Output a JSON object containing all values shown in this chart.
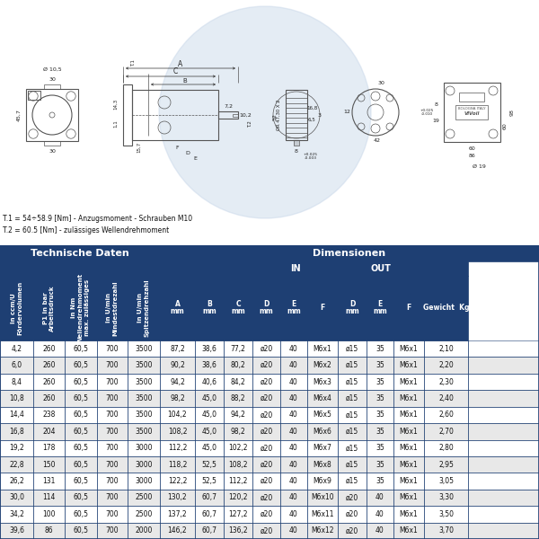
{
  "title_note1": "T.1 = 54÷58.9 [Nm] - Anzugsmoment - Schrauben M10",
  "title_note2": "T.2 = 60.5 [Nm] - zulässiges Wellendrehmoment",
  "header_tech": "Technische Daten",
  "header_dim": "Dimensionen",
  "header_in": "IN",
  "header_out": "OUT",
  "col_headers_rotated": [
    "Fördervolumen\nin ccm/U",
    "Arbeitsdruck\nP1 in bar",
    "max. zulässiges\nWellendrehmoment\nin Nm",
    "Mindestdrezahl\nin U/min",
    "Spitzendrehzahl\nin U/min"
  ],
  "rows": [
    [
      "4,2",
      "260",
      "60,5",
      "700",
      "3500",
      "87,2",
      "38,6",
      "77,2",
      "ø20",
      "40",
      "M6x1",
      "ø15",
      "35",
      "M6x1",
      "2,10"
    ],
    [
      "6,0",
      "260",
      "60,5",
      "700",
      "3500",
      "90,2",
      "38,6",
      "80,2",
      "ø20",
      "40",
      "M6x2",
      "ø15",
      "35",
      "M6x1",
      "2,20"
    ],
    [
      "8,4",
      "260",
      "60,5",
      "700",
      "3500",
      "94,2",
      "40,6",
      "84,2",
      "ø20",
      "40",
      "M6x3",
      "ø15",
      "35",
      "M6x1",
      "2,30"
    ],
    [
      "10,8",
      "260",
      "60,5",
      "700",
      "3500",
      "98,2",
      "45,0",
      "88,2",
      "ø20",
      "40",
      "M6x4",
      "ø15",
      "35",
      "M6x1",
      "2,40"
    ],
    [
      "14,4",
      "238",
      "60,5",
      "700",
      "3500",
      "104,2",
      "45,0",
      "94,2",
      "ø20",
      "40",
      "M6x5",
      "ø15",
      "35",
      "M6x1",
      "2,60"
    ],
    [
      "16,8",
      "204",
      "60,5",
      "700",
      "3500",
      "108,2",
      "45,0",
      "98,2",
      "ø20",
      "40",
      "M6x6",
      "ø15",
      "35",
      "M6x1",
      "2,70"
    ],
    [
      "19,2",
      "178",
      "60,5",
      "700",
      "3000",
      "112,2",
      "45,0",
      "102,2",
      "ø20",
      "40",
      "M6x7",
      "ø15",
      "35",
      "M6x1",
      "2,80"
    ],
    [
      "22,8",
      "150",
      "60,5",
      "700",
      "3000",
      "118,2",
      "52,5",
      "108,2",
      "ø20",
      "40",
      "M6x8",
      "ø15",
      "35",
      "M6x1",
      "2,95"
    ],
    [
      "26,2",
      "131",
      "60,5",
      "700",
      "3000",
      "122,2",
      "52,5",
      "112,2",
      "ø20",
      "40",
      "M6x9",
      "ø15",
      "35",
      "M6x1",
      "3,05"
    ],
    [
      "30,0",
      "114",
      "60,5",
      "700",
      "2500",
      "130,2",
      "60,7",
      "120,2",
      "ø20",
      "40",
      "M6x10",
      "ø20",
      "40",
      "M6x1",
      "3,30"
    ],
    [
      "34,2",
      "100",
      "60,5",
      "700",
      "2500",
      "137,2",
      "60,7",
      "127,2",
      "ø20",
      "40",
      "M6x11",
      "ø20",
      "40",
      "M6x1",
      "3,50"
    ],
    [
      "39,6",
      "86",
      "60,5",
      "700",
      "2000",
      "146,2",
      "60,7",
      "136,2",
      "ø20",
      "40",
      "M6x12",
      "ø20",
      "40",
      "M6x1",
      "3,70"
    ]
  ],
  "header_bg": "#1e3f73",
  "header_fg": "#ffffff",
  "row_bg_odd": "#ffffff",
  "row_bg_even": "#e8e8e8",
  "table_border": "#1e3f73",
  "fig_bg": "#ffffff",
  "drawing_bg": "#f5f8fc",
  "watermark_color": "#c5d5e8",
  "dim_line_color": "#333333",
  "drawing_line_color": "#555555"
}
